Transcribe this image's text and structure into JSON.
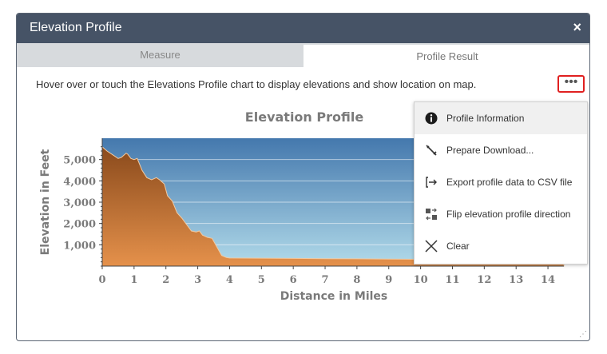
{
  "window": {
    "title": "Elevation Profile",
    "close": "×"
  },
  "tabs": [
    {
      "label": "Measure",
      "active": false
    },
    {
      "label": "Profile Result",
      "active": true
    }
  ],
  "instructions": "Hover over or touch the Elevations Profile chart to display elevations and show location on map.",
  "more_button": "•••",
  "menu": {
    "items": [
      {
        "label": "Profile Information",
        "icon": "info-icon"
      },
      {
        "label": "Prepare Download...",
        "icon": "wrench-icon"
      },
      {
        "label": "Export profile data to CSV file",
        "icon": "export-icon"
      },
      {
        "label": "Flip elevation profile direction",
        "icon": "flip-icon"
      },
      {
        "label": "Clear",
        "icon": "close-icon"
      }
    ]
  },
  "chart_data": {
    "type": "area",
    "title": "Elevation Profile",
    "xlabel": "Distance in Miles",
    "ylabel": "Elevation in Feet",
    "xlim": [
      0,
      14.5
    ],
    "ylim": [
      0,
      6000
    ],
    "xticks": [
      "0",
      "1",
      "2",
      "3",
      "4",
      "5",
      "6",
      "7",
      "8",
      "9",
      "10",
      "11",
      "12",
      "13",
      "14"
    ],
    "yticks": [
      "1,000",
      "2,000",
      "3,000",
      "4,000",
      "5,000"
    ],
    "grid": true,
    "x": [
      0,
      0.15,
      0.35,
      0.5,
      0.6,
      0.75,
      0.8,
      0.9,
      1.0,
      1.1,
      1.25,
      1.4,
      1.55,
      1.7,
      1.8,
      1.95,
      2.05,
      2.2,
      2.35,
      2.5,
      2.65,
      2.8,
      2.95,
      3.05,
      3.15,
      3.3,
      3.45,
      3.6,
      3.75,
      3.9,
      4.0,
      5,
      6,
      7,
      8,
      9,
      10,
      11,
      12,
      13,
      14,
      14.5
    ],
    "values": [
      5600,
      5400,
      5200,
      5050,
      5100,
      5300,
      5250,
      5050,
      5000,
      5050,
      4500,
      4150,
      4050,
      4150,
      4050,
      3850,
      3300,
      3050,
      2500,
      2250,
      1950,
      1650,
      1600,
      1650,
      1450,
      1350,
      1300,
      900,
      500,
      400,
      380,
      370,
      360,
      350,
      340,
      330,
      320,
      310,
      300,
      290,
      280,
      280
    ]
  },
  "colors": {
    "titlebar": "#465366",
    "sky_top": "#4478ad",
    "sky_bottom": "#b2dbea",
    "terrain_top": "#8a4a1c",
    "terrain_bottom": "#e5914b",
    "highlight_border": "#e02020"
  }
}
